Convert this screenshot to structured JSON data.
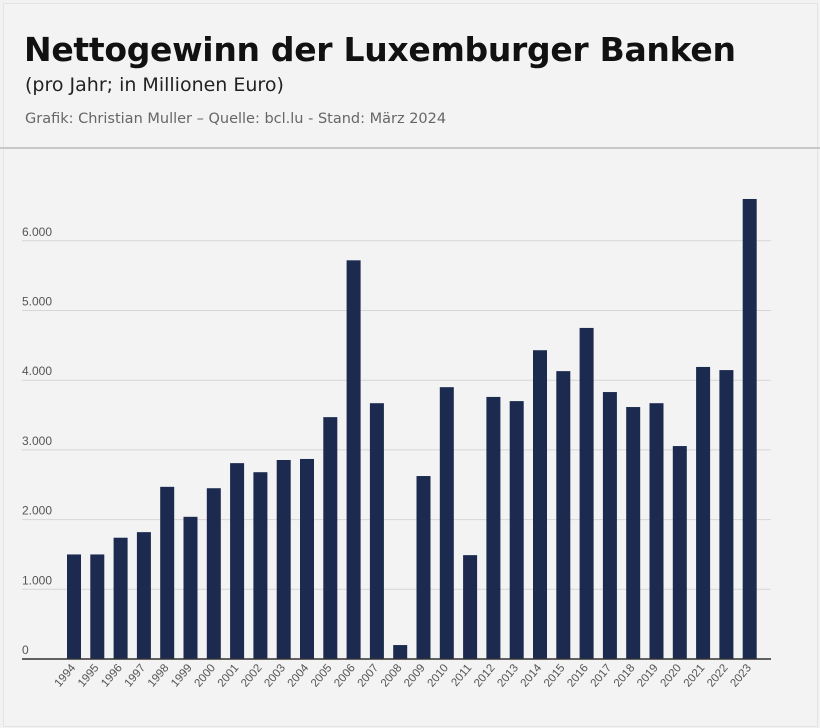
{
  "header": {
    "title": "Nettogewinn der Luxemburger Banken",
    "subtitle": "(pro Jahr; in Millionen Euro)",
    "credits": "Grafik: Christian Muller – Quelle: bcl.lu - Stand: März 2024"
  },
  "chart_data": {
    "type": "bar",
    "title": "Nettogewinn der Luxemburger Banken",
    "subtitle": "(pro Jahr; in Millionen Euro)",
    "xlabel": "",
    "ylabel": "",
    "ylim": [
      0,
      6600
    ],
    "yticks": [
      0,
      1000,
      2000,
      3000,
      4000,
      5000,
      6000
    ],
    "ytick_labels": [
      "0",
      "1.000",
      "2.000",
      "3.000",
      "4.000",
      "5.000",
      "6.000"
    ],
    "grid": true,
    "bar_color": "#1b2a4e",
    "categories": [
      "1994",
      "1995",
      "1996",
      "1997",
      "1998",
      "1999",
      "2000",
      "2001",
      "2002",
      "2003",
      "2004",
      "2005",
      "2006",
      "2007",
      "2008",
      "2009",
      "2010",
      "2011",
      "2012",
      "2013",
      "2014",
      "2015",
      "2016",
      "2017",
      "2018",
      "2019",
      "2020",
      "2021",
      "2022",
      "2023"
    ],
    "values": [
      1500,
      1500,
      1740,
      1820,
      2470,
      2040,
      2450,
      2810,
      2680,
      2855,
      2870,
      3470,
      5720,
      3670,
      200,
      2625,
      3900,
      1490,
      3760,
      3700,
      4430,
      4130,
      4750,
      3830,
      3615,
      3670,
      3055,
      4190,
      4145,
      6600
    ]
  }
}
